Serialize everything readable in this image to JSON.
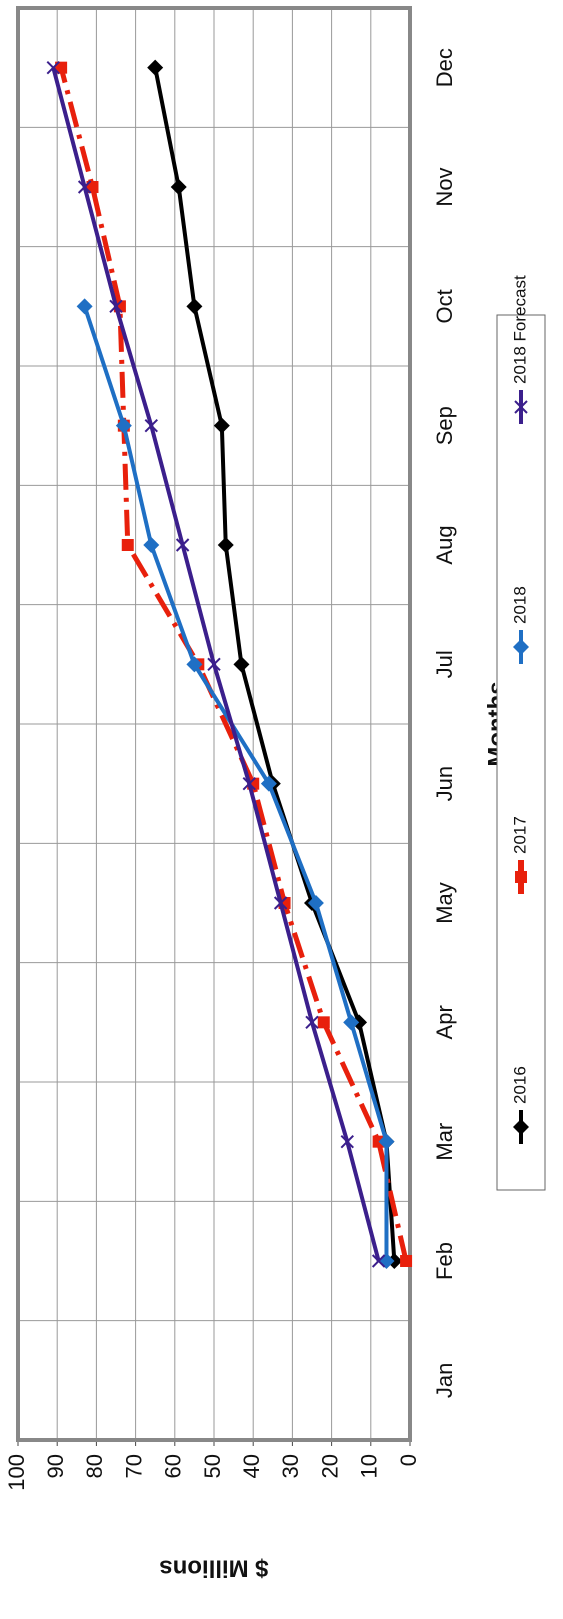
{
  "chart_data": {
    "type": "line",
    "x_label": "Months",
    "y_label": "$ Millions",
    "categories": [
      "Jan",
      "Feb",
      "Mar",
      "Apr",
      "May",
      "Jun",
      "Jul",
      "Aug",
      "Sep",
      "Oct",
      "Nov",
      "Dec"
    ],
    "ylim": [
      0,
      100
    ],
    "yticks": [
      0,
      10,
      20,
      30,
      40,
      50,
      60,
      70,
      80,
      90,
      100
    ],
    "grid": true,
    "legend": "bottom",
    "series": [
      {
        "name": "2016",
        "color": "#000000",
        "marker": "diamond",
        "values": [
          null,
          4,
          6,
          13,
          25,
          35,
          43,
          47,
          48,
          55,
          59,
          65
        ]
      },
      {
        "name": "2017",
        "color": "#e8200c",
        "marker": "square",
        "dash": true,
        "values": [
          null,
          1,
          8,
          22,
          32,
          40,
          54,
          72,
          73,
          74,
          81,
          89
        ]
      },
      {
        "name": "2018",
        "color": "#1f6fc4",
        "marker": "diamond",
        "values": [
          null,
          6,
          6,
          15,
          24,
          36,
          55,
          66,
          73,
          83,
          null,
          null
        ]
      },
      {
        "name": "2018 Forecast",
        "color": "#3b1f8c",
        "marker": "x",
        "values": [
          null,
          8,
          16,
          25,
          33,
          41,
          50,
          58,
          66,
          75,
          83,
          91
        ]
      }
    ]
  }
}
